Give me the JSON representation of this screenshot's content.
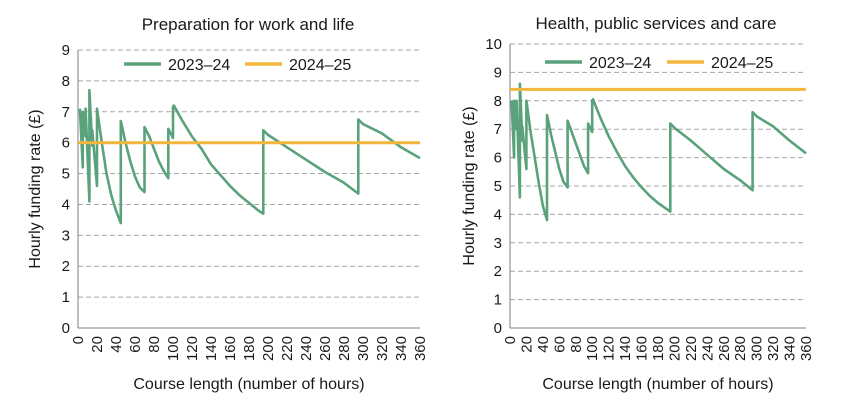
{
  "chart_data": [
    {
      "type": "line",
      "title": "Preparation for work and life",
      "xlabel": "Course length (number of hours)",
      "ylabel": "Hourly funding rate (£)",
      "xlim": [
        0,
        360
      ],
      "ylim": [
        0,
        9
      ],
      "xticks": [
        0,
        20,
        40,
        60,
        80,
        100,
        120,
        140,
        160,
        180,
        200,
        220,
        240,
        260,
        280,
        300,
        320,
        340,
        360
      ],
      "yticks": [
        0,
        1,
        2,
        3,
        4,
        5,
        6,
        7,
        8,
        9
      ],
      "grid": true,
      "legend": "top",
      "series": [
        {
          "name": "2023–24",
          "color": "#5aa27b",
          "x": [
            2,
            5,
            5,
            8,
            8,
            12,
            12,
            15,
            15,
            20,
            20,
            25,
            30,
            35,
            40,
            45,
            45,
            50,
            55,
            60,
            65,
            70,
            70,
            75,
            80,
            85,
            90,
            95,
            95,
            100,
            100,
            101,
            110,
            120,
            130,
            140,
            150,
            160,
            170,
            180,
            190,
            195,
            195,
            200,
            220,
            240,
            260,
            280,
            295,
            295,
            300,
            320,
            340,
            360
          ],
          "y": [
            7.1,
            5.2,
            7.0,
            6.2,
            7.1,
            4.1,
            7.7,
            5.9,
            6.4,
            4.6,
            7.1,
            6.0,
            5.0,
            4.3,
            3.8,
            3.4,
            6.7,
            6.0,
            5.4,
            4.9,
            4.55,
            4.4,
            6.5,
            6.2,
            5.8,
            5.4,
            5.1,
            4.85,
            6.45,
            6.15,
            7.15,
            7.2,
            6.7,
            6.2,
            5.8,
            5.3,
            4.95,
            4.6,
            4.3,
            4.05,
            3.8,
            3.7,
            6.4,
            6.25,
            5.85,
            5.45,
            5.05,
            4.7,
            4.35,
            6.75,
            6.6,
            6.3,
            5.85,
            5.5
          ]
        },
        {
          "name": "2024–25",
          "color": "#f2b63c",
          "x": [
            0,
            360
          ],
          "y": [
            6.0,
            6.0
          ]
        }
      ]
    },
    {
      "type": "line",
      "title": "Health, public services and care",
      "xlabel": "Course length (number of hours)",
      "ylabel": "Hourly funding rate (£)",
      "xlim": [
        0,
        360
      ],
      "ylim": [
        0,
        10
      ],
      "xticks": [
        0,
        20,
        40,
        60,
        80,
        100,
        120,
        140,
        160,
        180,
        200,
        220,
        240,
        260,
        280,
        300,
        320,
        340,
        360
      ],
      "yticks": [
        0,
        1,
        2,
        3,
        4,
        5,
        6,
        7,
        8,
        9,
        10
      ],
      "grid": true,
      "legend": "top",
      "series": [
        {
          "name": "2023–24",
          "color": "#5aa27b",
          "x": [
            2,
            5,
            5,
            8,
            8,
            12,
            12,
            15,
            15,
            20,
            20,
            25,
            30,
            35,
            40,
            45,
            45,
            50,
            55,
            60,
            65,
            70,
            70,
            75,
            80,
            85,
            90,
            95,
            95,
            100,
            100,
            101,
            110,
            120,
            130,
            140,
            150,
            160,
            170,
            180,
            190,
            195,
            195,
            200,
            220,
            240,
            260,
            280,
            295,
            295,
            300,
            320,
            340,
            360
          ],
          "y": [
            8.0,
            6.0,
            8.0,
            7.0,
            8.0,
            4.6,
            8.6,
            6.6,
            7.1,
            5.6,
            8.0,
            6.9,
            6.0,
            5.1,
            4.3,
            3.8,
            7.5,
            6.8,
            6.2,
            5.6,
            5.15,
            4.95,
            7.3,
            6.9,
            6.5,
            6.1,
            5.7,
            5.45,
            7.2,
            6.9,
            8.0,
            8.05,
            7.4,
            6.75,
            6.2,
            5.7,
            5.3,
            4.95,
            4.65,
            4.4,
            4.2,
            4.1,
            7.2,
            7.05,
            6.6,
            6.1,
            5.6,
            5.2,
            4.85,
            7.6,
            7.45,
            7.1,
            6.6,
            6.15
          ]
        },
        {
          "name": "2024–25",
          "color": "#f2b63c",
          "x": [
            0,
            360
          ],
          "y": [
            8.4,
            8.4
          ]
        }
      ]
    }
  ]
}
